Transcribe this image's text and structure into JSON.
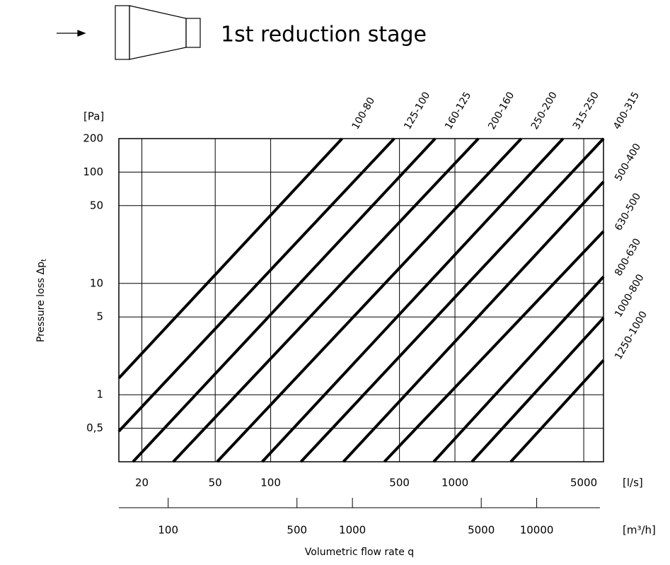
{
  "chart_data": {
    "type": "line",
    "title": "1st reduction stage",
    "ylabel": "Pressure loss Δp",
    "ylabel_sub": "t",
    "yunit": "[Pa]",
    "xunit": "[l/s]",
    "x2unit": "[m³/h]",
    "xlabel": "Volumetric flow rate q",
    "xscale": "log",
    "yscale": "log",
    "grid": true,
    "xlim": [
      15,
      6400
    ],
    "ylim": [
      0.25,
      200
    ],
    "xticks": [
      20,
      50,
      100,
      500,
      1000,
      5000
    ],
    "yticks": [
      200,
      100,
      50,
      10,
      5,
      1,
      {
        "value": 0.5,
        "label": "0,5"
      }
    ],
    "x2lim": [
      54,
      23040
    ],
    "x2ticks": [
      100,
      500,
      1000,
      5000,
      10000
    ],
    "series": [
      {
        "name": "100-80",
        "color": "#000000",
        "x": [
          15,
          244
        ],
        "y": [
          1.41,
          200
        ]
      },
      {
        "name": "125-100",
        "color": "#000000",
        "x": [
          15,
          468
        ],
        "y": [
          0.47,
          200
        ]
      },
      {
        "name": "160-125",
        "color": "#000000",
        "x": [
          17.9,
          781
        ],
        "y": [
          0.25,
          200
        ]
      },
      {
        "name": "200-160",
        "color": "#000000",
        "x": [
          29.6,
          1340
        ],
        "y": [
          0.25,
          200
        ]
      },
      {
        "name": "250-200",
        "color": "#000000",
        "x": [
          51.2,
          2290
        ],
        "y": [
          0.25,
          200
        ]
      },
      {
        "name": "315-250",
        "color": "#000000",
        "x": [
          90,
          3860
        ],
        "y": [
          0.25,
          200
        ]
      },
      {
        "name": "400-315",
        "color": "#000000",
        "x": [
          146,
          6400
        ],
        "y": [
          0.25,
          200
        ]
      },
      {
        "name": "500-400",
        "color": "#000000",
        "x": [
          248,
          6400
        ],
        "y": [
          0.25,
          82
        ]
      },
      {
        "name": "630-500",
        "color": "#000000",
        "x": [
          414,
          6400
        ],
        "y": [
          0.25,
          29.4
        ]
      },
      {
        "name": "800-630",
        "color": "#000000",
        "x": [
          767,
          6400
        ],
        "y": [
          0.25,
          11.5
        ]
      },
      {
        "name": "1000-800",
        "color": "#000000",
        "x": [
          1236,
          6400
        ],
        "y": [
          0.25,
          4.9
        ]
      },
      {
        "name": "1250-1000",
        "color": "#000000",
        "x": [
          2010,
          6400
        ],
        "y": [
          0.25,
          2.04
        ]
      }
    ]
  }
}
